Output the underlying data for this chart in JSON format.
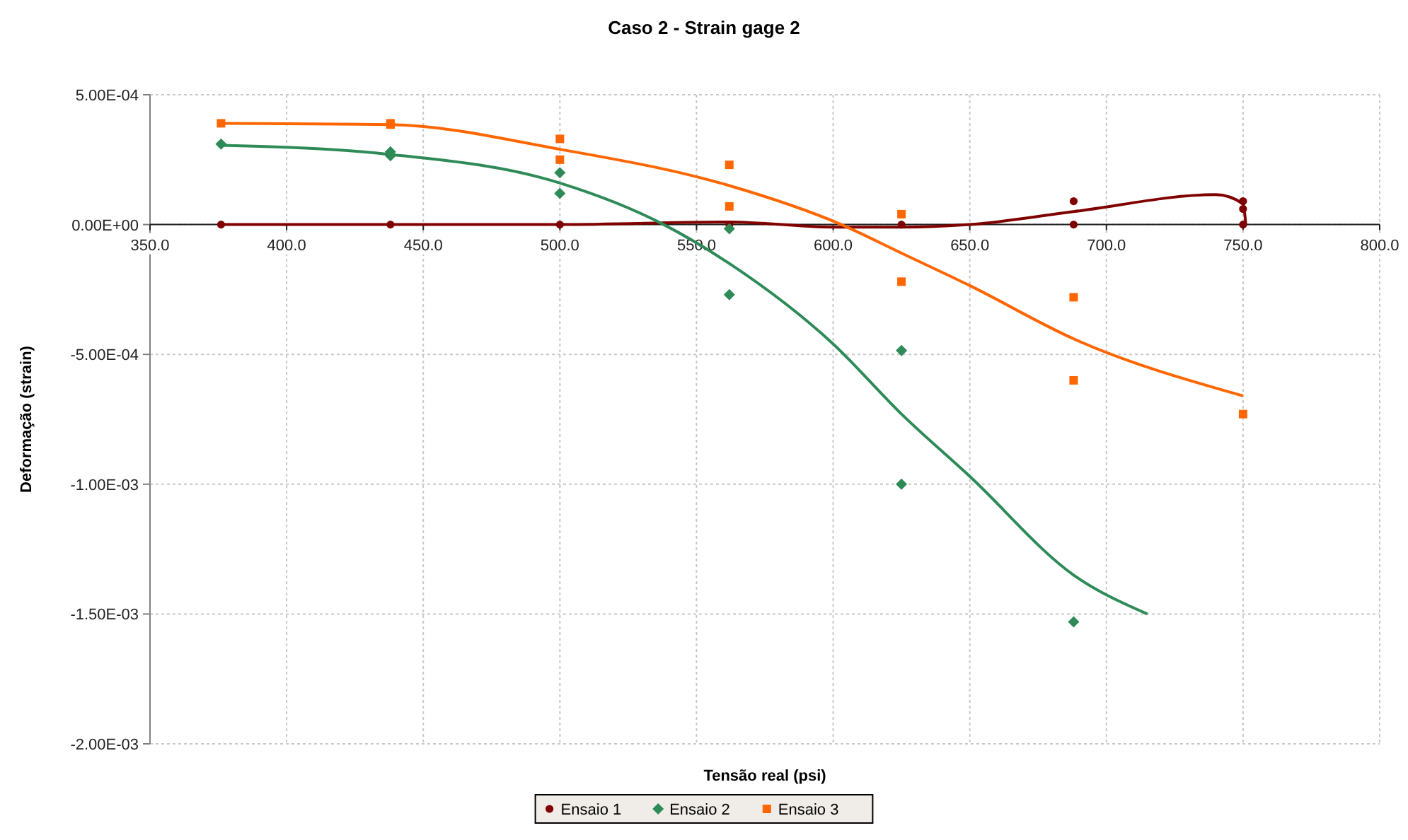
{
  "chart_data": {
    "type": "scatter",
    "title": "Caso 2 - Strain gage 2",
    "xlabel": "Tensão real (psi)",
    "ylabel": "Deformação (strain)",
    "xlim": [
      350,
      800
    ],
    "ylim": [
      -0.002,
      0.0005
    ],
    "xticks": [
      {
        "value": 350,
        "label": "350.0"
      },
      {
        "value": 400,
        "label": "400.0"
      },
      {
        "value": 450,
        "label": "450.0"
      },
      {
        "value": 500,
        "label": "500.0"
      },
      {
        "value": 550,
        "label": "550.0"
      },
      {
        "value": 600,
        "label": "600.0"
      },
      {
        "value": 650,
        "label": "650.0"
      },
      {
        "value": 700,
        "label": "700.0"
      },
      {
        "value": 750,
        "label": "750.0"
      },
      {
        "value": 800,
        "label": "800.0"
      }
    ],
    "yticks": [
      {
        "value": 0.0005,
        "label": "5.00E-04"
      },
      {
        "value": 0,
        "label": "0.00E+00"
      },
      {
        "value": -0.0005,
        "label": "-5.00E-04"
      },
      {
        "value": -0.001,
        "label": "-1.00E-03"
      },
      {
        "value": -0.0015,
        "label": "-1.50E-03"
      },
      {
        "value": -0.002,
        "label": "-2.00E-03"
      }
    ],
    "grid": true,
    "legend": "bottom",
    "series": [
      {
        "type": "line",
        "color": "#800000",
        "marker": "none",
        "x": [
          376,
          438,
          500,
          562,
          600,
          625,
          650,
          688,
          740,
          750,
          751
        ],
        "values": [
          0,
          0,
          0,
          1e-05,
          -1e-05,
          -1e-05,
          0,
          5e-05,
          0.000115,
          8e-05,
          0
        ]
      },
      {
        "type": "line",
        "color": "#2e8b57",
        "marker": "none",
        "x": [
          376,
          438,
          500,
          538,
          562,
          600,
          625,
          650,
          688,
          715
        ],
        "values": [
          0.000305,
          0.00027,
          0.00016,
          0,
          -0.00015,
          -0.00046,
          -0.00073,
          -0.00097,
          -0.00135,
          -0.0015
        ]
      },
      {
        "type": "line",
        "color": "#ff6600",
        "marker": "none",
        "x": [
          376,
          438,
          500,
          562,
          603,
          625,
          650,
          688,
          750
        ],
        "values": [
          0.00039,
          0.000385,
          0.00029,
          0.00015,
          0,
          -0.00011,
          -0.000235,
          -0.00044,
          -0.00066
        ]
      },
      {
        "name": "Ensaio 1",
        "color": "#800000",
        "marker": "circle",
        "x": [
          376,
          438,
          500,
          562,
          625,
          688,
          688,
          750,
          750,
          750
        ],
        "values": [
          0,
          0,
          0,
          0,
          0,
          9e-05,
          0,
          9e-05,
          6e-05,
          0
        ]
      },
      {
        "name": "Ensaio 2",
        "color": "#2e8b57",
        "marker": "diamond",
        "x": [
          376,
          438,
          438,
          500,
          500,
          562,
          562,
          625,
          625,
          688
        ],
        "values": [
          0.00031,
          0.00028,
          0.000265,
          0.0002,
          0.00012,
          -1.6e-05,
          -0.00027,
          -0.000485,
          -0.001,
          -0.00153
        ]
      },
      {
        "name": "Ensaio 3",
        "color": "#ff6600",
        "marker": "square",
        "x": [
          376,
          438,
          438,
          500,
          500,
          562,
          562,
          625,
          625,
          688,
          688,
          750
        ],
        "values": [
          0.00039,
          0.00039,
          0.000385,
          0.00033,
          0.00025,
          0.00023,
          7e-05,
          4e-05,
          -0.00022,
          -0.00028,
          -0.0006,
          -0.00073
        ]
      }
    ]
  }
}
